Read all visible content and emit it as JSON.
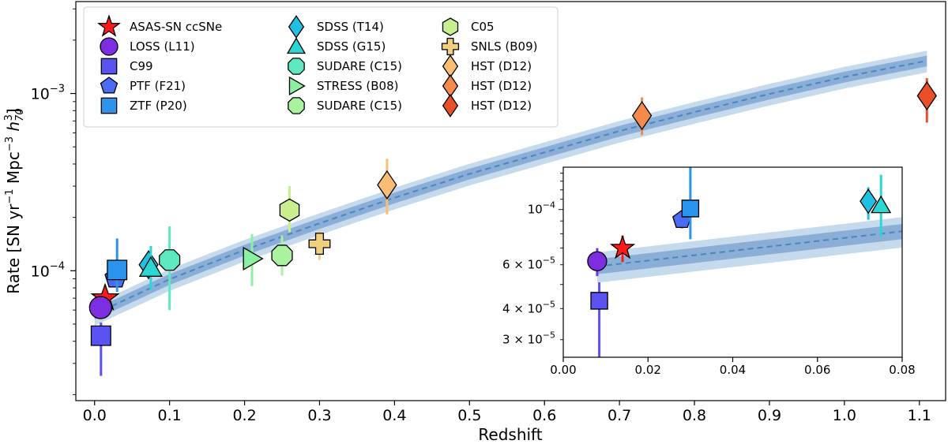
{
  "chart_data": {
    "type": "scatter",
    "xlabel": "Redshift",
    "ylabel": "Rate [SN yr⁻¹ Mpc⁻³ h₃₇₀]",
    "ylabel_parts": {
      "base": "Rate [SN yr",
      "e1": "−1",
      "mid": " Mpc",
      "e2": "−3",
      "h": " h",
      "hsub": "70",
      "hsup": "3",
      "end": "]"
    },
    "xlim": [
      -0.025,
      1.135
    ],
    "ylim": [
      1.85e-05,
      0.0033
    ],
    "yscale": "log",
    "x_ticks": [
      "0.0",
      "0.1",
      "0.2",
      "0.3",
      "0.4",
      "0.5",
      "0.6",
      "0.7",
      "0.8",
      "0.9",
      "1.0",
      "1.1"
    ],
    "y_tick_labels": [
      {
        "base": "10",
        "exp": "−4",
        "value": 0.0001
      },
      {
        "base": "10",
        "exp": "−3",
        "value": 0.001
      }
    ],
    "legend_position": "top-left",
    "fit": {
      "style": "dashed",
      "color": "#4a86c0",
      "x": [
        0.0,
        0.1,
        0.2,
        0.3,
        0.4,
        0.5,
        0.6,
        0.7,
        0.8,
        0.9,
        1.0,
        1.1
      ],
      "y": [
        5.7e-05,
        8.95e-05,
        0.000131,
        0.000185,
        0.000258,
        0.000352,
        0.000465,
        0.000614,
        0.000785,
        0.000994,
        0.00124,
        0.0015
      ],
      "band_inner": 0.07,
      "band_outer": 0.14
    },
    "series": [
      {
        "name": "ASAS-SN ccSNe",
        "marker": "star",
        "color": "#ff1a1a",
        "x": 0.014,
        "y": 7e-05,
        "err": [
          6.15e-05,
          7.85e-05
        ]
      },
      {
        "name": "LOSS (L11)",
        "marker": "circle",
        "color": "#7c2ee0",
        "x": 0.008,
        "y": 6.2e-05,
        "err": [
          5.4e-05,
          7e-05
        ]
      },
      {
        "name": "C99",
        "marker": "square",
        "color": "#5b52f2",
        "x": 0.0085,
        "y": 4.3e-05,
        "err": [
          2.55e-05,
          5.1e-05
        ]
      },
      {
        "name": "PTF (F21)",
        "marker": "pentagon",
        "color": "#4a6cf2",
        "x": 0.028,
        "y": 9.1e-05,
        "err": [
          8.4e-05,
          9.9e-05
        ]
      },
      {
        "name": "ZTF (P20)",
        "marker": "square",
        "color": "#2b94ee",
        "x": 0.03,
        "y": 0.000101,
        "err": [
          7.6e-05,
          0.000152
        ]
      },
      {
        "name": "SDSS (T14)",
        "marker": "diamond",
        "color": "#1fc0e4",
        "x": 0.072,
        "y": 0.000108,
        "err": [
          9.1e-05,
          0.000123
        ]
      },
      {
        "name": "SDSS (G15)",
        "marker": "triangle",
        "color": "#29d8d2",
        "x": 0.075,
        "y": 0.000104,
        "err": [
          7.8e-05,
          0.000138
        ]
      },
      {
        "name": "SUDARE (C15)",
        "marker": "octagon",
        "color": "#5ee8bf",
        "x": 0.1,
        "y": 0.000115,
        "err": [
          6e-05,
          0.000178
        ]
      },
      {
        "name": "STRESS (B08)",
        "marker": "triangle-right",
        "color": "#8cf0a2",
        "x": 0.21,
        "y": 0.000117,
        "err": [
          8.2e-05,
          0.000161
        ]
      },
      {
        "name": "SUDARE (C15)",
        "marker": "octagon",
        "color": "#aaf2a0",
        "x": 0.25,
        "y": 0.000122,
        "err": [
          9.4e-05,
          0.000158
        ]
      },
      {
        "name": "C05",
        "marker": "hexagon",
        "color": "#c8ee8e",
        "x": 0.26,
        "y": 0.00022,
        "err": [
          0.000165,
          0.0003
        ]
      },
      {
        "name": "SNLS (B09)",
        "marker": "plus",
        "color": "#f0d080",
        "x": 0.3,
        "y": 0.000142,
        "err": [
          0.000115,
          0.000168
        ]
      },
      {
        "name": "HST (D12)",
        "marker": "diamond",
        "color": "#fbbd73",
        "x": 0.39,
        "y": 0.000305,
        "err": [
          0.000208,
          0.000428
        ]
      },
      {
        "name": "HST (D12)",
        "marker": "diamond",
        "color": "#f58a4c",
        "x": 0.73,
        "y": 0.00075,
        "err": [
          0.000582,
          0.00095
        ]
      },
      {
        "name": "HST (D12)",
        "marker": "diamond",
        "color": "#ea4f2a",
        "x": 1.11,
        "y": 0.00097,
        "err": [
          0.000685,
          0.00122
        ]
      }
    ],
    "inset": {
      "xlim": [
        0.0,
        0.08
      ],
      "ylim": [
        2.55e-05,
        0.000148
      ],
      "x_ticks": [
        "0.00",
        "0.02",
        "0.04",
        "0.06",
        "0.08"
      ],
      "y_tick_labels": [
        {
          "mant": "3",
          "exp": "−5",
          "value": 3e-05
        },
        {
          "mant": "4",
          "exp": "−5",
          "value": 4e-05
        },
        {
          "mant": "6",
          "exp": "−5",
          "value": 6e-05
        },
        {
          "base": "10",
          "exp": "−4",
          "value": 0.0001
        }
      ]
    }
  }
}
